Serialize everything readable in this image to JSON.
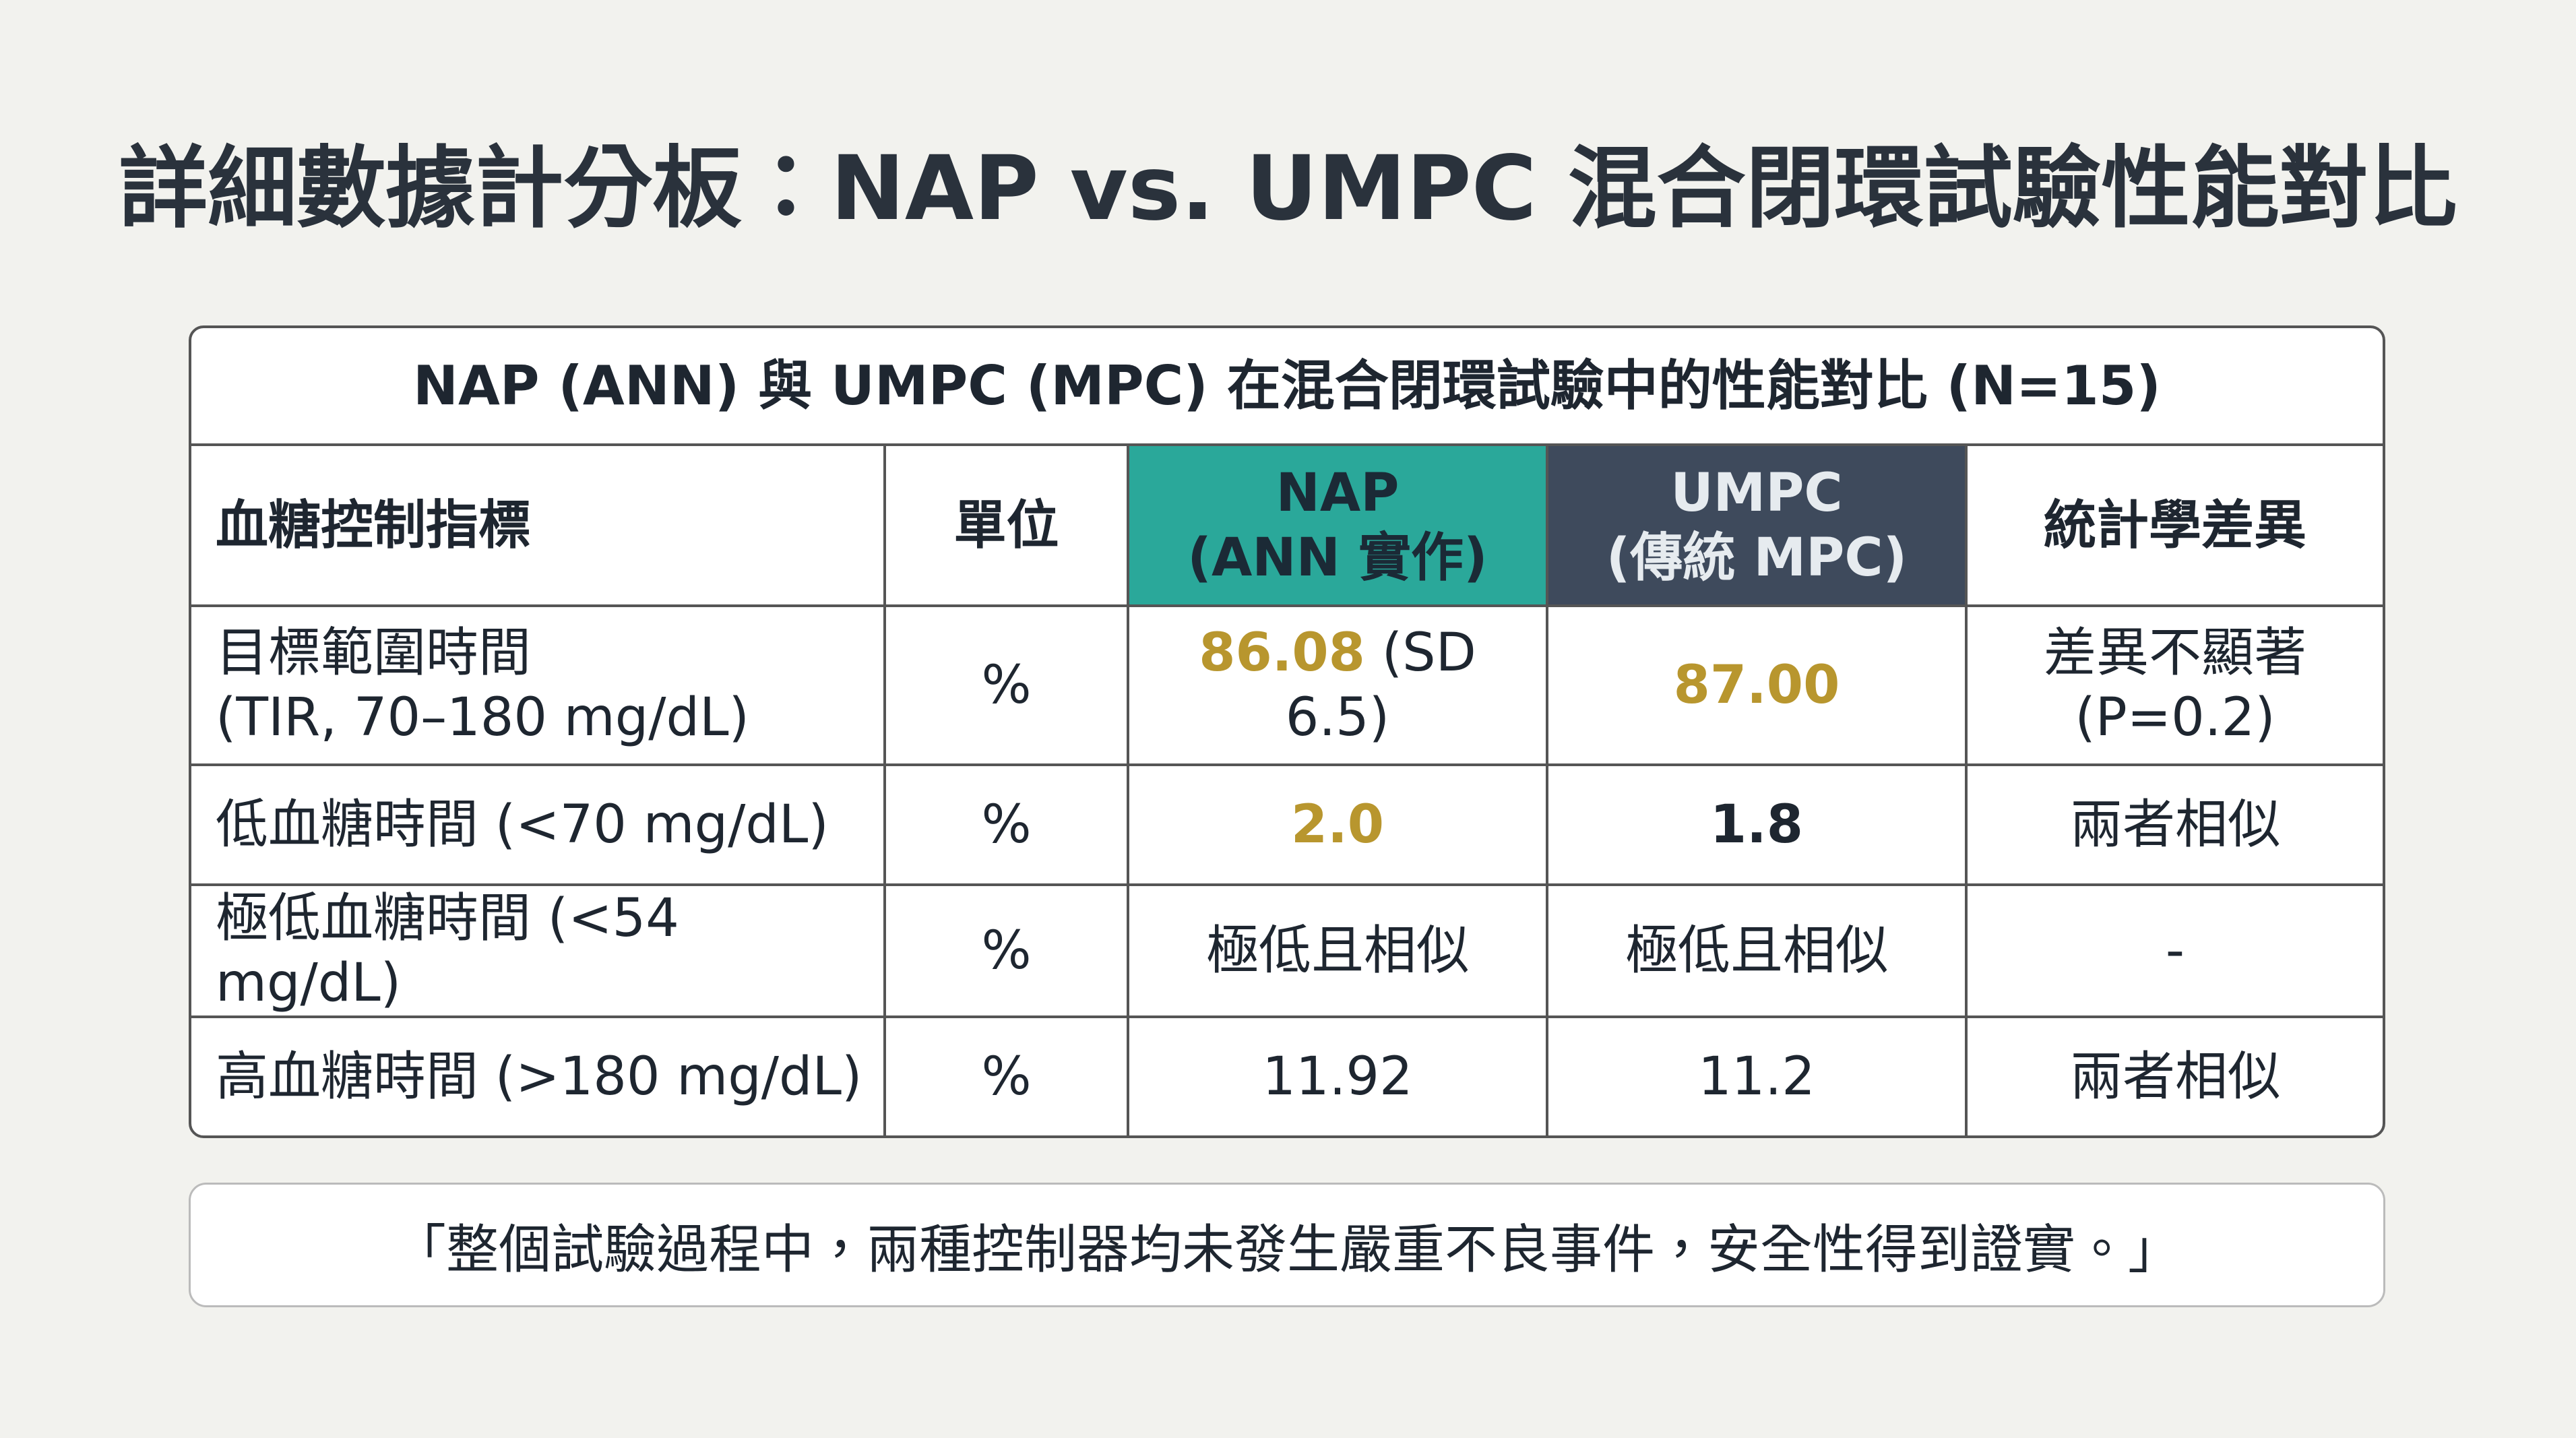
{
  "title": "詳細數據計分板：NAP vs. UMPC 混合閉環試驗性能對比",
  "table": {
    "caption": "NAP (ANN) 與 UMPC (MPC) 在混合閉環試驗中的性能對比 (N=15)",
    "header": [
      [
        "血糖控制指標"
      ],
      [
        "單位"
      ],
      [
        "NAP",
        "(ANN 實作)"
      ],
      [
        "UMPC",
        "(傳統 MPC)"
      ],
      [
        "統計學差異"
      ]
    ],
    "rows": [
      [
        [
          "目標範圍時間",
          "(TIR, 70–180 mg/dL)"
        ],
        "%",
        [
          "86.08",
          "(SD 6.5)"
        ],
        "87.00",
        [
          "差異不顯著",
          "(P=0.2)"
        ]
      ],
      [
        "低血糖時間 (<70 mg/dL)",
        "%",
        "2.0",
        "1.8",
        "兩者相似"
      ],
      [
        "極低血糖時間 (<54 mg/dL)",
        "%",
        "極低且相似",
        "極低且相似",
        "-"
      ],
      [
        "高血糖時間 (>180 mg/dL)",
        "%",
        "11.92",
        "11.2",
        "兩者相似"
      ]
    ]
  },
  "footer": "「整個試驗過程中，兩種控制器均未發生嚴重不良事件，安全性得到證實。」"
}
